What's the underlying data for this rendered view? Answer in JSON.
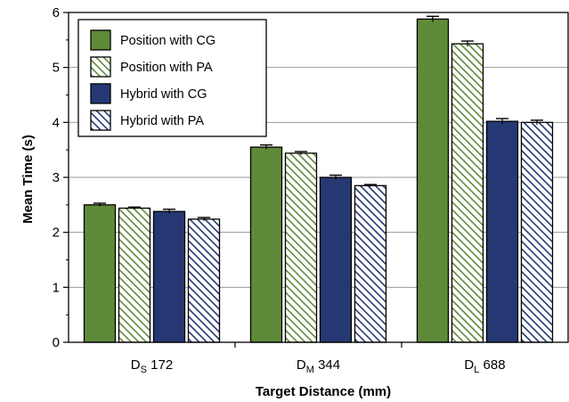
{
  "chart_data": {
    "type": "bar",
    "categories": [
      {
        "main": "D",
        "sub": "S",
        "value": "172"
      },
      {
        "main": "D",
        "sub": "M",
        "value": "344"
      },
      {
        "main": "D",
        "sub": "L",
        "value": "688"
      }
    ],
    "series": [
      {
        "name": "Position with CG",
        "color": "#5f8a3a",
        "hatched": false,
        "values": [
          2.5,
          3.55,
          5.88
        ],
        "errors": [
          0.03,
          0.04,
          0.05
        ]
      },
      {
        "name": "Position with PA",
        "color": "#5f8a3a",
        "hatched": true,
        "values": [
          2.44,
          3.44,
          5.43
        ],
        "errors": [
          0.02,
          0.03,
          0.05
        ]
      },
      {
        "name": "Hybrid with CG",
        "color": "#253874",
        "hatched": false,
        "values": [
          2.38,
          3.0,
          4.02
        ],
        "errors": [
          0.04,
          0.04,
          0.05
        ]
      },
      {
        "name": "Hybrid with PA",
        "color": "#253874",
        "hatched": true,
        "values": [
          2.24,
          2.85,
          4.0
        ],
        "errors": [
          0.03,
          0.02,
          0.04
        ]
      }
    ],
    "xlabel": "Target Distance (mm)",
    "ylabel": "Mean Time (s)",
    "ylim": [
      0,
      6
    ],
    "yticks": [
      "0",
      "1",
      "2",
      "3",
      "4",
      "5",
      "6"
    ],
    "grid": true,
    "legend": "top-left"
  }
}
